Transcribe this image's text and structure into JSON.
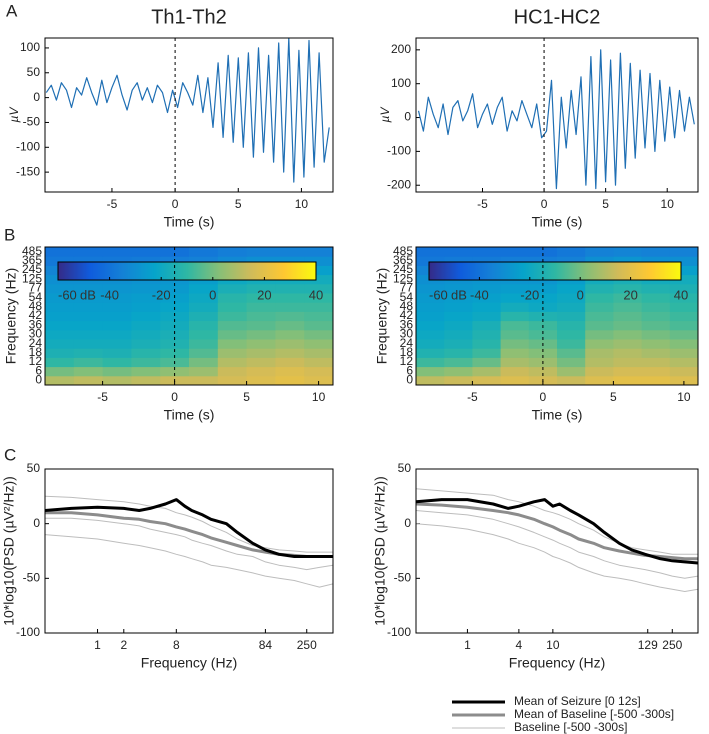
{
  "panel_labels": [
    "A",
    "B",
    "C"
  ],
  "chart_data": [
    {
      "type": "line",
      "title": "Th1-Th2",
      "xlabel": "Time (s)",
      "ylabel": "µV",
      "xlim": [
        -10.3,
        12.5
      ],
      "xticks": [
        -5,
        0,
        5,
        10
      ],
      "ylim": [
        -190,
        120
      ],
      "yticks": [
        -150,
        -100,
        -50,
        0,
        50,
        100
      ],
      "vline": 0,
      "x": [
        -10.2,
        -9.8,
        -9.4,
        -9,
        -8.6,
        -8.2,
        -7.8,
        -7.4,
        -7,
        -6.6,
        -6.2,
        -5.8,
        -5.4,
        -5,
        -4.6,
        -4.2,
        -3.8,
        -3.4,
        -3,
        -2.6,
        -2.2,
        -1.8,
        -1.4,
        -1,
        -0.6,
        -0.2,
        0.2,
        0.6,
        1,
        1.4,
        1.8,
        2.2,
        2.6,
        3,
        3.4,
        3.8,
        4.2,
        4.6,
        5,
        5.4,
        5.8,
        6.2,
        6.6,
        7,
        7.4,
        7.8,
        8.2,
        8.6,
        9,
        9.4,
        9.8,
        10.2,
        10.6,
        11,
        11.4,
        11.8,
        12.2
      ],
      "series": [
        {
          "color": "#1f6fb4",
          "width": 1.2,
          "values": [
            10,
            25,
            -5,
            30,
            15,
            -20,
            20,
            5,
            40,
            10,
            -15,
            35,
            -10,
            20,
            45,
            5,
            -25,
            15,
            30,
            -5,
            20,
            -10,
            25,
            10,
            -30,
            15,
            -20,
            30,
            10,
            -15,
            45,
            -30,
            40,
            -60,
            70,
            -80,
            85,
            -90,
            80,
            -100,
            90,
            -120,
            100,
            -110,
            85,
            -130,
            110,
            -150,
            120,
            -170,
            95,
            -160,
            115,
            -140,
            90,
            -130,
            -60
          ]
        }
      ]
    },
    {
      "type": "line",
      "title": "HC1-HC2",
      "xlabel": "Time (s)",
      "ylabel": "µV",
      "xlim": [
        -10.4,
        12.5
      ],
      "xticks": [
        -5,
        0,
        5,
        10
      ],
      "ylim": [
        -220,
        235
      ],
      "yticks": [
        -200,
        -100,
        0,
        100,
        200
      ],
      "vline": 0,
      "x": [
        -10.2,
        -9.8,
        -9.4,
        -9,
        -8.6,
        -8.2,
        -7.8,
        -7.4,
        -7,
        -6.6,
        -6.2,
        -5.8,
        -5.4,
        -5,
        -4.6,
        -4.2,
        -3.8,
        -3.4,
        -3,
        -2.6,
        -2.2,
        -1.8,
        -1.4,
        -1,
        -0.6,
        -0.2,
        0.2,
        0.6,
        1,
        1.4,
        1.8,
        2.2,
        2.6,
        3,
        3.4,
        3.8,
        4.2,
        4.6,
        5,
        5.4,
        5.8,
        6.2,
        6.6,
        7,
        7.4,
        7.8,
        8.2,
        8.6,
        9,
        9.4,
        9.8,
        10.2,
        10.6,
        11,
        11.4,
        11.8,
        12.2
      ],
      "series": [
        {
          "color": "#1f6fb4",
          "width": 1.2,
          "values": [
            20,
            -40,
            60,
            10,
            -30,
            40,
            -50,
            30,
            50,
            -10,
            20,
            70,
            -30,
            10,
            40,
            -20,
            30,
            60,
            -40,
            20,
            -10,
            50,
            10,
            -30,
            40,
            -60,
            -40,
            110,
            -210,
            60,
            -90,
            80,
            -50,
            120,
            -200,
            180,
            -210,
            200,
            -190,
            170,
            -200,
            190,
            -150,
            160,
            -120,
            140,
            -90,
            130,
            -100,
            110,
            -70,
            90,
            -60,
            80,
            -40,
            60,
            -20
          ]
        }
      ]
    },
    {
      "type": "heatmap",
      "xlabel": "Time (s)",
      "ylabel": "Frequency (Hz)",
      "xlim": [
        -9,
        11
      ],
      "xticks": [
        -5,
        0,
        5,
        10
      ],
      "vline": 0,
      "x": [
        -8,
        -6,
        -4,
        -2,
        0,
        2,
        4,
        6,
        8,
        10
      ],
      "y": [
        0,
        6,
        12,
        18,
        24,
        30,
        36,
        42,
        48,
        54,
        77,
        125,
        245,
        365,
        485
      ],
      "clim": [
        -60,
        40
      ],
      "cticks": [
        -60,
        -40,
        -20,
        0,
        20,
        40
      ],
      "colorbar_unit": "dB",
      "colormap": [
        "#352a87",
        "#0f5cdd",
        "#1481d6",
        "#06a4ca",
        "#2eb7a4",
        "#87bf77",
        "#d1bb59",
        "#fec832",
        "#f9fb0e"
      ],
      "z": [
        [
          10,
          12,
          10,
          12,
          14,
          14,
          16,
          18,
          20,
          18
        ],
        [
          0,
          2,
          0,
          2,
          4,
          6,
          14,
          16,
          18,
          16
        ],
        [
          -10,
          -8,
          -10,
          -8,
          -6,
          0,
          10,
          12,
          14,
          12
        ],
        [
          -15,
          -14,
          -15,
          -12,
          -10,
          -5,
          6,
          8,
          10,
          8
        ],
        [
          -18,
          -18,
          -18,
          -16,
          -14,
          -8,
          2,
          4,
          6,
          4
        ],
        [
          -20,
          -20,
          -20,
          -18,
          -16,
          -10,
          -2,
          0,
          2,
          0
        ],
        [
          -22,
          -22,
          -22,
          -20,
          -18,
          -12,
          -5,
          -4,
          -2,
          -4
        ],
        [
          -24,
          -24,
          -24,
          -22,
          -20,
          -15,
          -8,
          -6,
          -5,
          -6
        ],
        [
          -25,
          -25,
          -25,
          -24,
          -22,
          -18,
          -10,
          -8,
          -8,
          -8
        ],
        [
          -26,
          -26,
          -26,
          -25,
          -24,
          -20,
          -12,
          -10,
          -10,
          -10
        ],
        [
          -28,
          -28,
          -28,
          -27,
          -26,
          -22,
          -16,
          -14,
          -14,
          -14
        ],
        [
          -30,
          -30,
          -30,
          -29,
          -28,
          -25,
          -20,
          -18,
          -18,
          -18
        ],
        [
          -34,
          -34,
          -34,
          -33,
          -32,
          -30,
          -26,
          -24,
          -24,
          -24
        ],
        [
          -38,
          -38,
          -38,
          -37,
          -36,
          -35,
          -32,
          -30,
          -30,
          -30
        ],
        [
          -40,
          -40,
          -40,
          -40,
          -40,
          -38,
          -36,
          -35,
          -35,
          -35
        ]
      ]
    },
    {
      "type": "heatmap",
      "xlabel": "Time (s)",
      "ylabel": "Frequency (Hz)",
      "xlim": [
        -9,
        11
      ],
      "xticks": [
        -5,
        0,
        5,
        10
      ],
      "vline": 0,
      "x": [
        -8,
        -6,
        -4,
        -2,
        0,
        2,
        4,
        6,
        8,
        10
      ],
      "y": [
        0,
        6,
        12,
        18,
        24,
        30,
        36,
        42,
        48,
        54,
        77,
        125,
        245,
        365,
        485
      ],
      "clim": [
        -60,
        40
      ],
      "cticks": [
        -60,
        -40,
        -20,
        0,
        20,
        40
      ],
      "colorbar_unit": "dB",
      "colormap": [
        "#352a87",
        "#0f5cdd",
        "#1481d6",
        "#06a4ca",
        "#2eb7a4",
        "#87bf77",
        "#d1bb59",
        "#fec832",
        "#f9fb0e"
      ],
      "z": [
        [
          12,
          14,
          16,
          18,
          16,
          14,
          18,
          20,
          20,
          18
        ],
        [
          2,
          4,
          8,
          14,
          12,
          6,
          14,
          16,
          16,
          14
        ],
        [
          -8,
          -6,
          -2,
          8,
          6,
          0,
          10,
          12,
          12,
          10
        ],
        [
          -14,
          -12,
          -8,
          4,
          2,
          -4,
          8,
          10,
          8,
          6
        ],
        [
          -18,
          -16,
          -12,
          0,
          -2,
          -8,
          4,
          6,
          4,
          2
        ],
        [
          -20,
          -18,
          -14,
          -4,
          -6,
          -10,
          0,
          2,
          0,
          -2
        ],
        [
          -22,
          -20,
          -16,
          -6,
          -8,
          -12,
          -4,
          -2,
          -4,
          -6
        ],
        [
          -24,
          -22,
          -20,
          -12,
          -14,
          -15,
          -6,
          -4,
          -6,
          -8
        ],
        [
          -25,
          -24,
          -22,
          -18,
          -20,
          -18,
          -8,
          -6,
          -8,
          -10
        ],
        [
          -26,
          -25,
          -24,
          -22,
          -22,
          -20,
          -10,
          -8,
          -10,
          -12
        ],
        [
          -28,
          -27,
          -26,
          -25,
          -25,
          -22,
          -14,
          -12,
          -14,
          -15
        ],
        [
          -30,
          -29,
          -28,
          -28,
          -28,
          -25,
          -18,
          -16,
          -18,
          -18
        ],
        [
          -34,
          -33,
          -33,
          -32,
          -32,
          -30,
          -24,
          -22,
          -24,
          -24
        ],
        [
          -38,
          -37,
          -37,
          -36,
          -36,
          -35,
          -30,
          -28,
          -30,
          -30
        ],
        [
          -40,
          -40,
          -40,
          -40,
          -40,
          -38,
          -35,
          -34,
          -35,
          -35
        ]
      ]
    },
    {
      "type": "line",
      "xscale": "log",
      "xlabel": "Frequency (Hz)",
      "ylabel": "10*log10(PSD  (µV²/Hz))",
      "xlim": [
        0.25,
        500
      ],
      "xticks": [
        1,
        2,
        8,
        84,
        250
      ],
      "ylim": [
        -100,
        50
      ],
      "yticks": [
        -100,
        -50,
        0,
        50
      ],
      "x": [
        0.25,
        0.5,
        1,
        2,
        3,
        4,
        6,
        8,
        10,
        12,
        16,
        20,
        30,
        40,
        60,
        84,
        120,
        180,
        250,
        350,
        500
      ],
      "series": [
        {
          "color": "#bdbdbd",
          "width": 1,
          "values": [
            25,
            24,
            22,
            20,
            18,
            16,
            14,
            10,
            8,
            6,
            2,
            -2,
            -8,
            -14,
            -20,
            -22,
            -24,
            -25,
            -26,
            -26,
            -26
          ]
        },
        {
          "color": "#bdbdbd",
          "width": 1,
          "values": [
            -10,
            -12,
            -14,
            -18,
            -20,
            -22,
            -25,
            -28,
            -30,
            -32,
            -35,
            -38,
            -40,
            -42,
            -45,
            -48,
            -50,
            -52,
            -55,
            -58,
            -55
          ]
        },
        {
          "color": "#bdbdbd",
          "width": 1,
          "values": [
            5,
            5,
            3,
            0,
            -2,
            -5,
            -8,
            -10,
            -12,
            -15,
            -18,
            -20,
            -25,
            -28,
            -30,
            -35,
            -38,
            -40,
            -42,
            -40,
            -38
          ]
        },
        {
          "color": "#8c8c8c",
          "width": 3,
          "values": [
            10,
            10,
            8,
            5,
            4,
            2,
            0,
            -3,
            -5,
            -7,
            -10,
            -13,
            -17,
            -20,
            -24,
            -26,
            -28,
            -29,
            -30,
            -30,
            -30
          ]
        },
        {
          "color": "#000000",
          "width": 3,
          "values": [
            12,
            14,
            15,
            14,
            12,
            14,
            18,
            22,
            16,
            12,
            8,
            4,
            0,
            -8,
            -18,
            -24,
            -28,
            -30,
            -30,
            -30,
            -30
          ]
        }
      ]
    },
    {
      "type": "line",
      "xscale": "log",
      "xlabel": "Frequency (Hz)",
      "ylabel": "10*log10(PSD  (µV²/Hz))",
      "xlim": [
        0.25,
        500
      ],
      "xticks": [
        1,
        4,
        10,
        129,
        250
      ],
      "ylim": [
        -100,
        50
      ],
      "yticks": [
        -100,
        -50,
        0,
        50
      ],
      "x": [
        0.25,
        0.5,
        1,
        2,
        3,
        4,
        6,
        8,
        10,
        12,
        16,
        20,
        30,
        40,
        60,
        84,
        120,
        180,
        250,
        350,
        500
      ],
      "series": [
        {
          "color": "#bdbdbd",
          "width": 1,
          "values": [
            32,
            30,
            28,
            26,
            22,
            20,
            16,
            12,
            10,
            8,
            4,
            0,
            -6,
            -12,
            -18,
            -22,
            -24,
            -26,
            -28,
            -28,
            -28
          ]
        },
        {
          "color": "#bdbdbd",
          "width": 1,
          "values": [
            0,
            -2,
            -5,
            -10,
            -14,
            -18,
            -22,
            -26,
            -30,
            -32,
            -36,
            -40,
            -45,
            -48,
            -50,
            -52,
            -55,
            -58,
            -60,
            -62,
            -60
          ]
        },
        {
          "color": "#bdbdbd",
          "width": 1,
          "values": [
            12,
            10,
            8,
            4,
            0,
            -3,
            -8,
            -12,
            -15,
            -18,
            -22,
            -26,
            -30,
            -34,
            -38,
            -40,
            -42,
            -45,
            -48,
            -50,
            -48
          ]
        },
        {
          "color": "#8c8c8c",
          "width": 3,
          "values": [
            18,
            17,
            15,
            12,
            10,
            8,
            4,
            0,
            -3,
            -6,
            -10,
            -14,
            -18,
            -22,
            -25,
            -27,
            -29,
            -30,
            -31,
            -32,
            -32
          ]
        },
        {
          "color": "#000000",
          "width": 3,
          "values": [
            20,
            22,
            22,
            18,
            14,
            16,
            20,
            22,
            16,
            18,
            12,
            8,
            0,
            -8,
            -18,
            -24,
            -28,
            -32,
            -34,
            -35,
            -36
          ]
        }
      ]
    }
  ],
  "legend": {
    "items": [
      {
        "name": "Mean of Seizure [0 12s]",
        "color": "#000000",
        "width": 3
      },
      {
        "name": "Mean of Baseline [-500 -300s]",
        "color": "#8c8c8c",
        "width": 3
      },
      {
        "name": "Baseline [-500 -300s]",
        "color": "#bdbdbd",
        "width": 1
      }
    ]
  }
}
